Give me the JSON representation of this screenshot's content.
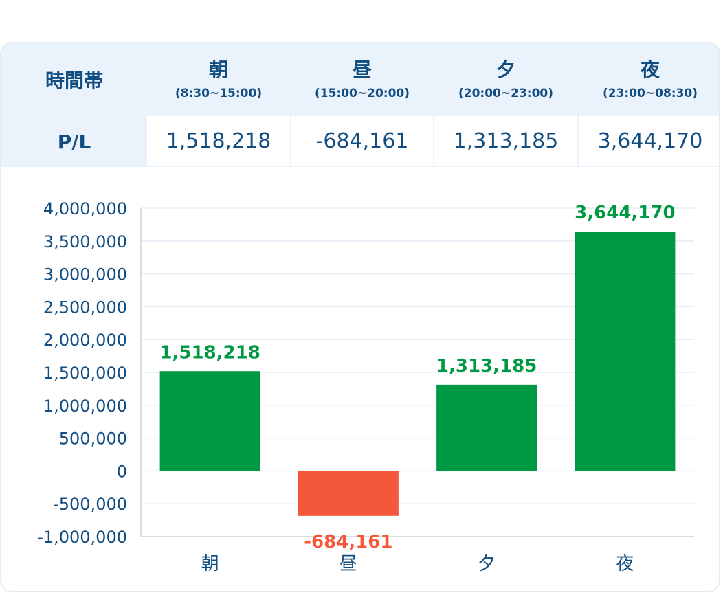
{
  "table": {
    "header_label": "時間帯",
    "row_label": "P/L",
    "columns": [
      {
        "name": "朝",
        "range": "(8:30~15:00)",
        "value": "1,518,218"
      },
      {
        "name": "昼",
        "range": "(15:00~20:00)",
        "value": "-684,161"
      },
      {
        "name": "夕",
        "range": "(20:00~23:00)",
        "value": "1,313,185"
      },
      {
        "name": "夜",
        "range": "(23:00~08:30)",
        "value": "3,644,170"
      }
    ]
  },
  "colors": {
    "positive": "#009943",
    "negative": "#f5573b",
    "text": "#124d82",
    "header_bg": "#eaf3fb",
    "grid": "#e6edf4"
  },
  "chart_data": {
    "type": "bar",
    "categories": [
      "朝",
      "昼",
      "夕",
      "夜"
    ],
    "values": [
      1518218,
      -684161,
      1313185,
      3644170
    ],
    "data_labels": [
      "1,518,218",
      "-684,161",
      "1,313,185",
      "3,644,170"
    ],
    "ylim": [
      -1000000,
      4000000
    ],
    "yticks": [
      -1000000,
      -500000,
      0,
      500000,
      1000000,
      1500000,
      2000000,
      2500000,
      3000000,
      3500000,
      4000000
    ],
    "ytick_labels": [
      "-1,000,000",
      "-500,000",
      "0",
      "500,000",
      "1,000,000",
      "1,500,000",
      "2,000,000",
      "2,500,000",
      "3,000,000",
      "3,500,000",
      "4,000,000"
    ],
    "title": "",
    "xlabel": "",
    "ylabel": "",
    "grid": true,
    "legend": "none"
  }
}
